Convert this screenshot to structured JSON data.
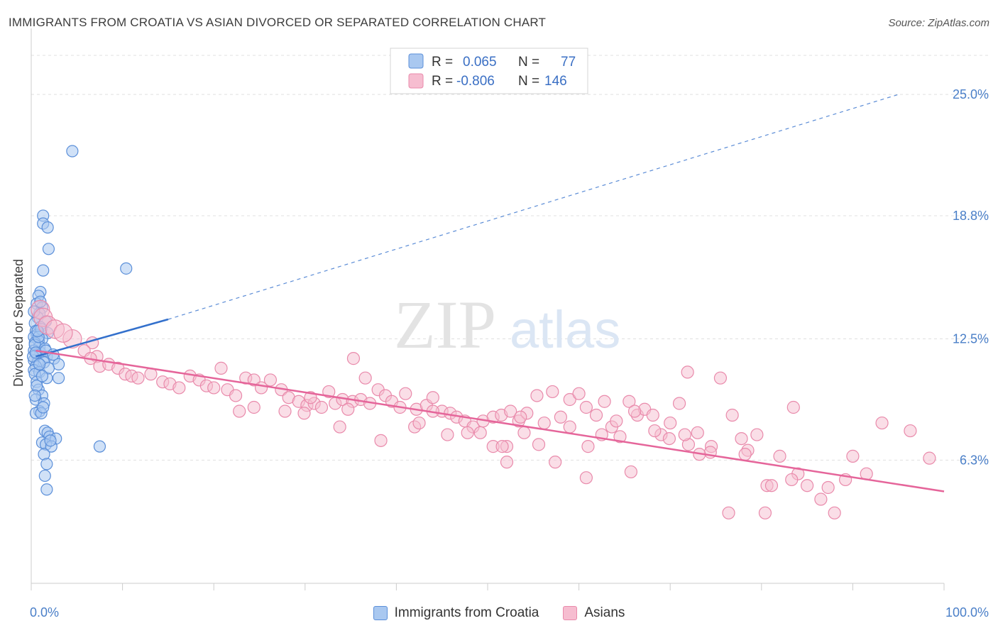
{
  "header": {
    "title": "IMMIGRANTS FROM CROATIA VS ASIAN DIVORCED OR SEPARATED CORRELATION CHART",
    "source": "Source: ZipAtlas.com"
  },
  "watermark": {
    "zip": "ZIP",
    "atlas": "atlas"
  },
  "colors": {
    "blue_fill": "#a9c8f0",
    "blue_stroke": "#5b8fd9",
    "blue_line": "#3370cc",
    "pink_fill": "#f6bdd0",
    "pink_stroke": "#e98aab",
    "pink_line": "#e5659a",
    "tick_text": "#4a7fc8",
    "grid": "#e0e0e0"
  },
  "legend": {
    "rows": [
      {
        "r_label": "R =",
        "r_value": "0.065",
        "n_label": "N =",
        "n_value": "77"
      },
      {
        "r_label": "R =",
        "r_value": "-0.806",
        "n_label": "N =",
        "n_value": "146"
      }
    ]
  },
  "chart_data": {
    "type": "scatter",
    "title": "IMMIGRANTS FROM CROATIA VS ASIAN DIVORCED OR SEPARATED CORRELATION CHART",
    "xlabel": "",
    "ylabel": "Divorced or Separated",
    "xlim": [
      0,
      100
    ],
    "ylim": [
      0,
      27
    ],
    "x_tick_labels": [
      "0.0%",
      "100.0%"
    ],
    "y_ticks": [
      6.3,
      12.5,
      18.8,
      25.0
    ],
    "y_tick_labels": [
      "6.3%",
      "12.5%",
      "18.8%",
      "25.0%"
    ],
    "grid": "horizontal dashed",
    "legend_position": "top-center",
    "series": [
      {
        "name": "Immigrants from Croatia",
        "color": "#a9c8f0",
        "R": 0.065,
        "N": 77,
        "trend_solid": [
          [
            0.5,
            11.6
          ],
          [
            15,
            13.5
          ]
        ],
        "trend_dashed": [
          [
            15,
            13.5
          ],
          [
            95,
            25.0
          ]
        ],
        "points": [
          [
            4.5,
            22.1
          ],
          [
            1.3,
            18.8
          ],
          [
            1.3,
            18.4
          ],
          [
            1.8,
            18.2
          ],
          [
            1.9,
            17.1
          ],
          [
            10.4,
            16.1
          ],
          [
            1.3,
            16.0
          ],
          [
            1.0,
            14.9
          ],
          [
            0.8,
            14.7
          ],
          [
            0.6,
            14.3
          ],
          [
            1.2,
            14.1
          ],
          [
            0.9,
            13.8
          ],
          [
            0.7,
            13.6
          ],
          [
            1.6,
            13.4
          ],
          [
            0.4,
            13.3
          ],
          [
            1.0,
            13.1
          ],
          [
            0.5,
            12.9
          ],
          [
            1.8,
            12.8
          ],
          [
            0.6,
            12.7
          ],
          [
            0.3,
            12.6
          ],
          [
            1.2,
            12.5
          ],
          [
            0.8,
            12.4
          ],
          [
            0.4,
            12.3
          ],
          [
            0.9,
            12.1
          ],
          [
            0.3,
            11.9
          ],
          [
            1.0,
            11.8
          ],
          [
            0.6,
            11.7
          ],
          [
            1.7,
            11.6
          ],
          [
            2.5,
            11.5
          ],
          [
            0.3,
            11.4
          ],
          [
            0.7,
            11.3
          ],
          [
            1.4,
            11.3
          ],
          [
            3.0,
            11.2
          ],
          [
            0.5,
            11.1
          ],
          [
            0.3,
            10.9
          ],
          [
            0.9,
            10.8
          ],
          [
            0.4,
            10.7
          ],
          [
            1.7,
            10.5
          ],
          [
            3.0,
            10.5
          ],
          [
            0.6,
            10.3
          ],
          [
            0.8,
            9.9
          ],
          [
            1.2,
            9.6
          ],
          [
            0.5,
            9.4
          ],
          [
            1.4,
            9.2
          ],
          [
            0.9,
            8.8
          ],
          [
            0.5,
            8.7
          ],
          [
            1.1,
            8.7
          ],
          [
            1.5,
            7.8
          ],
          [
            1.8,
            7.7
          ],
          [
            2.0,
            7.5
          ],
          [
            2.7,
            7.4
          ],
          [
            1.2,
            7.2
          ],
          [
            1.6,
            7.1
          ],
          [
            2.2,
            7.0
          ],
          [
            7.5,
            7.0
          ],
          [
            1.4,
            6.6
          ],
          [
            1.7,
            6.1
          ],
          [
            1.5,
            5.5
          ],
          [
            1.7,
            4.8
          ],
          [
            0.4,
            12.2
          ],
          [
            1.1,
            13.0
          ],
          [
            0.2,
            11.6
          ],
          [
            1.5,
            12.0
          ],
          [
            0.6,
            10.1
          ],
          [
            1.9,
            11.0
          ],
          [
            0.8,
            12.6
          ],
          [
            0.3,
            13.9
          ],
          [
            1.3,
            9.0
          ],
          [
            2.1,
            7.3
          ],
          [
            0.5,
            11.8
          ],
          [
            1.0,
            14.4
          ],
          [
            0.7,
            12.9
          ],
          [
            1.6,
            11.9
          ],
          [
            0.4,
            9.6
          ],
          [
            2.4,
            11.7
          ],
          [
            0.9,
            11.2
          ],
          [
            1.2,
            10.6
          ]
        ]
      },
      {
        "name": "Asians",
        "color": "#f6bdd0",
        "R": -0.806,
        "N": 146,
        "trend": [
          [
            0.5,
            11.9
          ],
          [
            100,
            4.7
          ]
        ],
        "points": [
          [
            1.0,
            14.0
          ],
          [
            1.3,
            13.6
          ],
          [
            1.8,
            13.2
          ],
          [
            2.6,
            13.0
          ],
          [
            4.5,
            12.5
          ],
          [
            3.5,
            12.8
          ],
          [
            6.7,
            12.3
          ],
          [
            5.8,
            11.9
          ],
          [
            7.2,
            11.6
          ],
          [
            6.5,
            11.5
          ],
          [
            7.5,
            11.1
          ],
          [
            8.5,
            11.2
          ],
          [
            9.5,
            11.0
          ],
          [
            10.3,
            10.7
          ],
          [
            11.0,
            10.6
          ],
          [
            11.7,
            10.5
          ],
          [
            13.1,
            10.7
          ],
          [
            14.4,
            10.3
          ],
          [
            15.2,
            10.2
          ],
          [
            16.2,
            10.0
          ],
          [
            17.4,
            10.6
          ],
          [
            18.4,
            10.4
          ],
          [
            19.2,
            10.1
          ],
          [
            20.0,
            10.0
          ],
          [
            20.8,
            11.0
          ],
          [
            21.5,
            9.9
          ],
          [
            22.4,
            9.6
          ],
          [
            23.5,
            10.5
          ],
          [
            24.4,
            10.4
          ],
          [
            25.2,
            10.0
          ],
          [
            26.2,
            10.4
          ],
          [
            27.4,
            9.9
          ],
          [
            28.2,
            9.5
          ],
          [
            29.3,
            9.3
          ],
          [
            30.2,
            9.1
          ],
          [
            31.0,
            9.2
          ],
          [
            31.8,
            9.0
          ],
          [
            32.6,
            9.8
          ],
          [
            33.3,
            9.2
          ],
          [
            34.1,
            9.4
          ],
          [
            35.2,
            9.3
          ],
          [
            36.1,
            9.4
          ],
          [
            37.1,
            9.2
          ],
          [
            38.0,
            9.9
          ],
          [
            38.8,
            9.6
          ],
          [
            39.5,
            9.3
          ],
          [
            40.4,
            9.0
          ],
          [
            41.0,
            9.7
          ],
          [
            42.2,
            8.9
          ],
          [
            43.3,
            9.1
          ],
          [
            44.0,
            9.5
          ],
          [
            45.0,
            8.8
          ],
          [
            45.9,
            8.7
          ],
          [
            46.6,
            8.5
          ],
          [
            47.5,
            8.3
          ],
          [
            48.4,
            8.0
          ],
          [
            49.5,
            8.3
          ],
          [
            50.6,
            8.5
          ],
          [
            51.5,
            8.6
          ],
          [
            52.5,
            8.8
          ],
          [
            53.4,
            8.3
          ],
          [
            54.3,
            8.7
          ],
          [
            55.4,
            9.6
          ],
          [
            56.2,
            8.2
          ],
          [
            57.1,
            9.8
          ],
          [
            58.0,
            8.5
          ],
          [
            59.0,
            9.4
          ],
          [
            60.0,
            9.7
          ],
          [
            60.8,
            9.0
          ],
          [
            61.9,
            8.6
          ],
          [
            62.8,
            9.3
          ],
          [
            63.6,
            8.0
          ],
          [
            64.5,
            7.5
          ],
          [
            65.5,
            9.3
          ],
          [
            66.4,
            8.6
          ],
          [
            67.2,
            8.9
          ],
          [
            68.1,
            8.6
          ],
          [
            69.0,
            7.6
          ],
          [
            70.0,
            8.2
          ],
          [
            71.0,
            9.2
          ],
          [
            72.0,
            7.1
          ],
          [
            73.0,
            7.7
          ],
          [
            74.5,
            7.0
          ],
          [
            75.5,
            10.5
          ],
          [
            76.8,
            8.6
          ],
          [
            77.8,
            7.4
          ],
          [
            78.5,
            6.8
          ],
          [
            79.5,
            7.6
          ],
          [
            80.6,
            5.0
          ],
          [
            82.0,
            6.5
          ],
          [
            83.5,
            9.0
          ],
          [
            85.0,
            5.0
          ],
          [
            86.5,
            4.3
          ],
          [
            88.0,
            3.6
          ],
          [
            90.0,
            6.5
          ],
          [
            91.5,
            5.6
          ],
          [
            84.0,
            5.6
          ],
          [
            74.4,
            6.7
          ],
          [
            76.4,
            3.6
          ],
          [
            80.4,
            3.6
          ],
          [
            71.9,
            10.8
          ],
          [
            65.7,
            5.7
          ],
          [
            60.8,
            5.4
          ],
          [
            57.4,
            6.2
          ],
          [
            52.1,
            6.2
          ],
          [
            52.1,
            7.0
          ],
          [
            50.6,
            7.0
          ],
          [
            44.0,
            8.8
          ],
          [
            35.3,
            11.5
          ],
          [
            36.6,
            10.5
          ],
          [
            24.4,
            9.0
          ],
          [
            22.8,
            8.8
          ],
          [
            27.8,
            8.8
          ],
          [
            29.9,
            8.7
          ],
          [
            33.8,
            8.0
          ],
          [
            38.3,
            7.3
          ],
          [
            42.0,
            8.0
          ],
          [
            45.6,
            7.6
          ],
          [
            47.8,
            7.7
          ],
          [
            49.2,
            7.7
          ],
          [
            51.6,
            7.0
          ],
          [
            53.6,
            8.5
          ],
          [
            54.0,
            7.7
          ],
          [
            55.6,
            7.1
          ],
          [
            59.0,
            8.0
          ],
          [
            61.0,
            7.0
          ],
          [
            62.5,
            7.6
          ],
          [
            64.1,
            8.3
          ],
          [
            66.1,
            8.8
          ],
          [
            68.3,
            7.8
          ],
          [
            69.9,
            7.4
          ],
          [
            71.6,
            7.6
          ],
          [
            73.2,
            6.6
          ],
          [
            78.2,
            6.6
          ],
          [
            81.1,
            5.0
          ],
          [
            83.3,
            5.3
          ],
          [
            87.3,
            4.9
          ],
          [
            93.2,
            8.2
          ],
          [
            96.3,
            7.8
          ],
          [
            98.4,
            6.4
          ],
          [
            89.2,
            5.3
          ],
          [
            42.5,
            8.2
          ],
          [
            30.6,
            9.5
          ],
          [
            34.7,
            8.9
          ]
        ]
      }
    ]
  },
  "bottom_legend": {
    "items": [
      {
        "label": "Immigrants from Croatia"
      },
      {
        "label": "Asians"
      }
    ]
  }
}
